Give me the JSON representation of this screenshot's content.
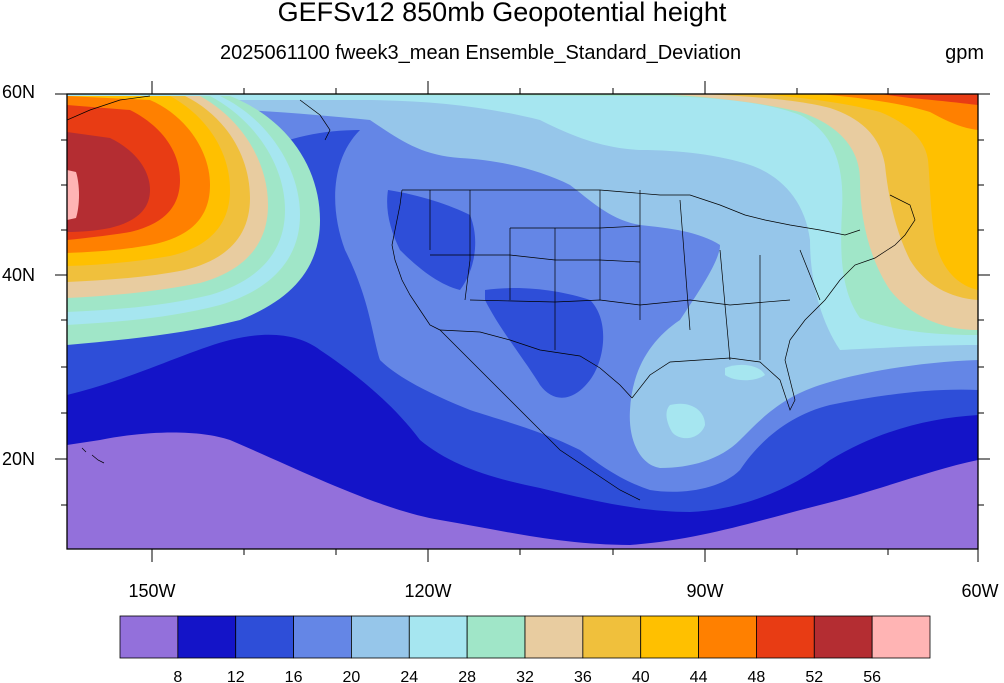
{
  "title": "GEFSv12 850mb Geopotential height",
  "subtitle": "2025061100 fweek3_mean Ensemble_Standard_Deviation",
  "units": "gpm",
  "lat_labels": [
    "60N",
    "40N",
    "20N"
  ],
  "lon_labels": [
    "150W",
    "120W",
    "90W",
    "60W"
  ],
  "colorbar": {
    "labels": [
      "8",
      "12",
      "16",
      "20",
      "24",
      "28",
      "32",
      "36",
      "40",
      "44",
      "48",
      "52",
      "56"
    ],
    "colors": [
      "#9370db",
      "#1414c8",
      "#2e4ed8",
      "#6486e6",
      "#96c6ea",
      "#a6e6f0",
      "#a0e6c8",
      "#e8cca0",
      "#f0c03c",
      "#ffc000",
      "#ff8000",
      "#e83c14",
      "#b42d32",
      "#ffb4b4"
    ]
  }
}
